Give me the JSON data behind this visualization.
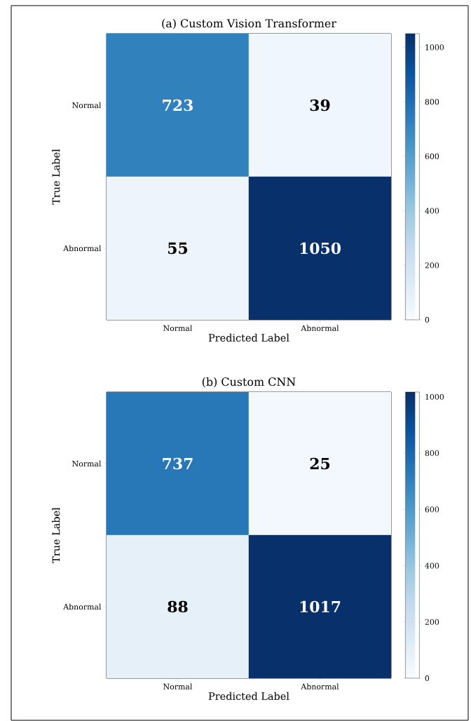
{
  "chart_data": [
    {
      "type": "heatmap",
      "title": "(a) Custom Vision Transformer",
      "xlabel": "Predicted Label",
      "ylabel": "True Label",
      "categories": [
        "Normal",
        "Abnormal"
      ],
      "y_categories": [
        "Normal",
        "Abnormal"
      ],
      "cells": [
        [
          723,
          39
        ],
        [
          55,
          1050
        ]
      ],
      "clim": [
        0,
        1050
      ],
      "cticks": [
        0,
        200,
        400,
        600,
        800,
        1000
      ],
      "data_labels": true
    },
    {
      "type": "heatmap",
      "title": "(b) Custom CNN",
      "xlabel": "Predicted Label",
      "ylabel": "True Label",
      "categories": [
        "Normal",
        "Abnormal"
      ],
      "y_categories": [
        "Normal",
        "Abnormal"
      ],
      "cells": [
        [
          737,
          25
        ],
        [
          88,
          1017
        ]
      ],
      "clim": [
        0,
        1017
      ],
      "cticks": [
        0,
        200,
        400,
        600,
        800,
        1000
      ],
      "data_labels": true
    }
  ]
}
